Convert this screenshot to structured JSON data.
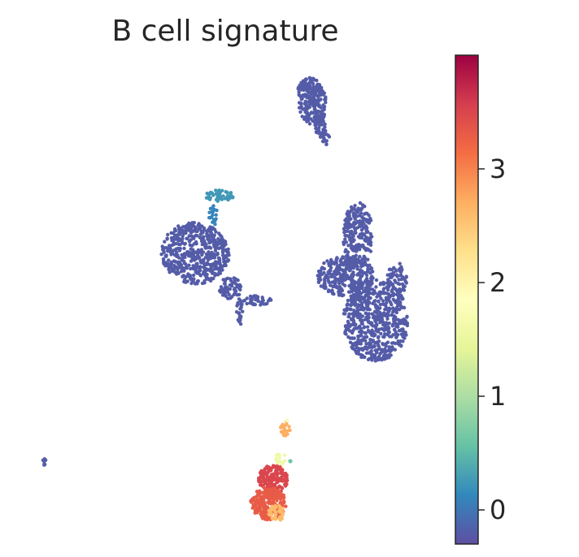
{
  "chart_data": {
    "type": "scatter",
    "title": "B cell signature",
    "xlabel": "",
    "ylabel": "",
    "grid": false,
    "colormap": "Spectral_r",
    "colorbar": {
      "range": [
        -0.3,
        4.0
      ],
      "ticks": [
        0,
        1,
        2,
        3
      ],
      "tick_labels": [
        "0",
        "1",
        "2",
        "3"
      ]
    },
    "clusters": [
      {
        "label": "top cluster",
        "value": -0.2
      },
      {
        "label": "upper-left small cluster",
        "value": 0.1
      },
      {
        "label": "left cluster",
        "value": -0.2
      },
      {
        "label": "right cluster",
        "value": -0.2
      },
      {
        "label": "bottom cluster (B cells)",
        "value": 3.5
      },
      {
        "label": "outlier point",
        "value": -0.2
      }
    ]
  },
  "colors": {
    "low": "#5e4fa2",
    "high": "#9e0142"
  }
}
